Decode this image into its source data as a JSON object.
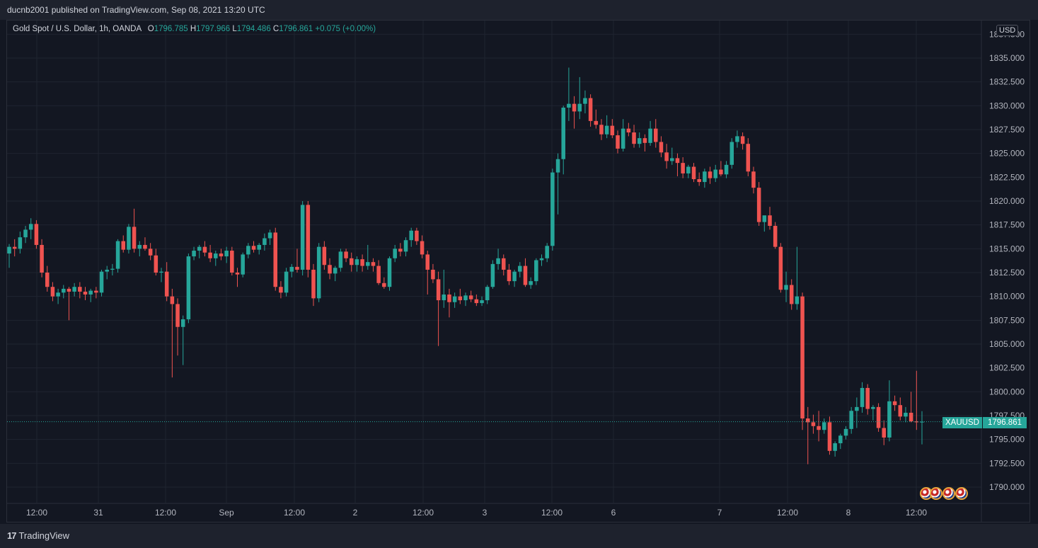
{
  "header": {
    "published": "ducnb2001 published on TradingView.com, Sep 08, 2021 13:20 UTC"
  },
  "legend": {
    "title": "Gold Spot / U.S. Dollar, 1h, OANDA",
    "o_label": "O",
    "o_value": "1796.785",
    "h_label": "H",
    "h_value": "1797.966",
    "l_label": "L",
    "l_value": "1794.486",
    "c_label": "C",
    "c_value": "1796.861",
    "change": "+0.075 (+0.00%)"
  },
  "currency": "USD",
  "symbol": "XAUUSD",
  "last_price": "1796.861",
  "footer": {
    "brand": "TradingView"
  },
  "colors": {
    "up": "#26a69a",
    "down": "#ef5350",
    "background": "#131722",
    "grid": "#1f2430"
  },
  "chart_data": {
    "type": "candlestick",
    "ylim": [
      1789,
      1837.5
    ],
    "y_ticks": [
      "1790.000",
      "1792.500",
      "1795.000",
      "1797.500",
      "1800.000",
      "1802.500",
      "1805.000",
      "1807.500",
      "1810.000",
      "1812.500",
      "1815.000",
      "1817.500",
      "1820.000",
      "1822.500",
      "1825.000",
      "1827.500",
      "1830.000",
      "1832.500",
      "1835.000",
      "1837.500"
    ],
    "x_ticks": [
      "12:00",
      "31",
      "12:00",
      "Sep",
      "12:00",
      "2",
      "12:00",
      "3",
      "12:00",
      "6",
      "7",
      "12:00",
      "8",
      "12:00"
    ],
    "last_close": 1796.861,
    "candles": [
      [
        1814.5,
        1815.5,
        1813.0,
        1815.2
      ],
      [
        1815.2,
        1816.0,
        1814.2,
        1815.0
      ],
      [
        1815.0,
        1816.8,
        1814.5,
        1816.2
      ],
      [
        1816.2,
        1817.4,
        1815.6,
        1817.0
      ],
      [
        1817.0,
        1818.2,
        1816.0,
        1817.6
      ],
      [
        1817.6,
        1818.0,
        1815.0,
        1815.4
      ],
      [
        1815.4,
        1816.0,
        1812.0,
        1812.5
      ],
      [
        1812.5,
        1813.2,
        1810.5,
        1811.0
      ],
      [
        1811.0,
        1811.5,
        1809.5,
        1810.0
      ],
      [
        1810.0,
        1810.8,
        1809.2,
        1810.4
      ],
      [
        1810.4,
        1811.2,
        1809.8,
        1810.8
      ],
      [
        1810.8,
        1811.0,
        1807.5,
        1810.5
      ],
      [
        1810.5,
        1811.4,
        1810.0,
        1811.0
      ],
      [
        1811.0,
        1811.5,
        1809.8,
        1810.5
      ],
      [
        1810.5,
        1811.0,
        1809.6,
        1810.2
      ],
      [
        1810.2,
        1810.8,
        1809.4,
        1810.6
      ],
      [
        1810.6,
        1811.0,
        1809.8,
        1810.4
      ],
      [
        1810.4,
        1812.8,
        1810.0,
        1812.6
      ],
      [
        1812.6,
        1813.2,
        1811.8,
        1812.8
      ],
      [
        1812.8,
        1813.4,
        1812.2,
        1812.9
      ],
      [
        1812.9,
        1816.0,
        1812.5,
        1815.8
      ],
      [
        1815.8,
        1816.4,
        1814.6,
        1814.9
      ],
      [
        1814.9,
        1817.6,
        1814.5,
        1817.3
      ],
      [
        1817.3,
        1819.2,
        1814.6,
        1815.0
      ],
      [
        1815.0,
        1815.8,
        1814.2,
        1815.4
      ],
      [
        1815.4,
        1816.2,
        1814.8,
        1815.0
      ],
      [
        1815.0,
        1815.6,
        1813.8,
        1814.3
      ],
      [
        1814.3,
        1815.0,
        1812.2,
        1812.5
      ],
      [
        1812.5,
        1813.0,
        1811.5,
        1812.6
      ],
      [
        1812.6,
        1813.6,
        1809.5,
        1810.0
      ],
      [
        1810.0,
        1810.8,
        1801.5,
        1809.2
      ],
      [
        1809.2,
        1809.8,
        1803.8,
        1806.8
      ],
      [
        1806.8,
        1808.0,
        1802.8,
        1807.6
      ],
      [
        1807.6,
        1814.5,
        1807.2,
        1814.2
      ],
      [
        1814.2,
        1815.2,
        1813.8,
        1814.8
      ],
      [
        1814.8,
        1815.4,
        1814.0,
        1815.2
      ],
      [
        1815.2,
        1815.8,
        1814.2,
        1814.6
      ],
      [
        1814.6,
        1815.4,
        1813.6,
        1814.0
      ],
      [
        1814.0,
        1814.8,
        1813.2,
        1814.5
      ],
      [
        1814.5,
        1815.0,
        1813.8,
        1814.2
      ],
      [
        1814.2,
        1815.2,
        1813.5,
        1814.8
      ],
      [
        1814.8,
        1815.2,
        1812.2,
        1812.5
      ],
      [
        1812.5,
        1813.0,
        1811.0,
        1812.3
      ],
      [
        1812.3,
        1814.6,
        1812.0,
        1814.4
      ],
      [
        1814.4,
        1815.6,
        1814.0,
        1815.3
      ],
      [
        1815.3,
        1815.8,
        1814.6,
        1814.9
      ],
      [
        1814.9,
        1815.6,
        1814.4,
        1815.4
      ],
      [
        1815.4,
        1816.6,
        1814.8,
        1816.1
      ],
      [
        1816.1,
        1817.0,
        1815.4,
        1816.7
      ],
      [
        1816.7,
        1817.2,
        1810.6,
        1811.0
      ],
      [
        1811.0,
        1811.6,
        1809.8,
        1810.4
      ],
      [
        1810.4,
        1813.0,
        1810.0,
        1812.6
      ],
      [
        1812.6,
        1813.4,
        1812.0,
        1813.1
      ],
      [
        1813.1,
        1815.0,
        1812.5,
        1812.8
      ],
      [
        1812.8,
        1820.0,
        1812.2,
        1819.6
      ],
      [
        1819.6,
        1820.0,
        1812.0,
        1812.8
      ],
      [
        1812.8,
        1813.4,
        1809.0,
        1809.8
      ],
      [
        1809.8,
        1815.6,
        1809.4,
        1815.2
      ],
      [
        1815.2,
        1815.8,
        1812.8,
        1813.3
      ],
      [
        1813.3,
        1814.0,
        1811.8,
        1812.4
      ],
      [
        1812.4,
        1813.2,
        1811.6,
        1813.0
      ],
      [
        1813.0,
        1815.0,
        1812.6,
        1814.7
      ],
      [
        1814.7,
        1815.0,
        1813.6,
        1814.0
      ],
      [
        1814.0,
        1814.6,
        1812.6,
        1813.3
      ],
      [
        1813.3,
        1814.2,
        1812.6,
        1813.9
      ],
      [
        1813.9,
        1814.4,
        1812.6,
        1813.2
      ],
      [
        1813.2,
        1815.4,
        1812.8,
        1813.6
      ],
      [
        1813.6,
        1814.0,
        1812.6,
        1813.2
      ],
      [
        1813.2,
        1813.8,
        1811.2,
        1811.4
      ],
      [
        1811.4,
        1812.0,
        1810.8,
        1811.0
      ],
      [
        1811.0,
        1814.2,
        1810.6,
        1814.0
      ],
      [
        1814.0,
        1815.4,
        1813.6,
        1815.0
      ],
      [
        1815.0,
        1815.6,
        1814.2,
        1814.7
      ],
      [
        1814.7,
        1816.2,
        1814.2,
        1815.9
      ],
      [
        1815.9,
        1817.2,
        1815.2,
        1816.9
      ],
      [
        1816.9,
        1817.2,
        1815.4,
        1815.8
      ],
      [
        1815.8,
        1816.4,
        1814.0,
        1814.4
      ],
      [
        1814.4,
        1814.8,
        1810.2,
        1812.8
      ],
      [
        1812.8,
        1813.4,
        1811.4,
        1811.8
      ],
      [
        1811.8,
        1812.6,
        1804.8,
        1809.6
      ],
      [
        1809.6,
        1812.8,
        1808.8,
        1810.2
      ],
      [
        1810.2,
        1810.8,
        1807.8,
        1809.4
      ],
      [
        1809.4,
        1810.4,
        1808.8,
        1810.0
      ],
      [
        1810.0,
        1810.8,
        1809.2,
        1809.6
      ],
      [
        1809.6,
        1810.4,
        1809.0,
        1810.1
      ],
      [
        1810.1,
        1810.6,
        1809.4,
        1809.7
      ],
      [
        1809.7,
        1810.2,
        1809.0,
        1809.3
      ],
      [
        1809.3,
        1810.0,
        1809.0,
        1809.6
      ],
      [
        1809.6,
        1811.2,
        1809.2,
        1811.0
      ],
      [
        1811.0,
        1813.8,
        1810.8,
        1813.4
      ],
      [
        1813.4,
        1815.0,
        1812.8,
        1814.0
      ],
      [
        1814.0,
        1814.4,
        1812.2,
        1812.8
      ],
      [
        1812.8,
        1813.4,
        1811.2,
        1811.6
      ],
      [
        1811.6,
        1812.8,
        1811.0,
        1812.6
      ],
      [
        1812.6,
        1813.6,
        1812.0,
        1813.2
      ],
      [
        1813.2,
        1814.0,
        1811.0,
        1811.2
      ],
      [
        1811.2,
        1812.0,
        1810.8,
        1811.6
      ],
      [
        1811.6,
        1814.0,
        1811.2,
        1813.8
      ],
      [
        1813.8,
        1814.4,
        1813.2,
        1814.0
      ],
      [
        1814.0,
        1815.6,
        1813.6,
        1815.3
      ],
      [
        1815.3,
        1823.4,
        1814.8,
        1823.0
      ],
      [
        1823.0,
        1825.0,
        1818.6,
        1824.4
      ],
      [
        1824.4,
        1830.0,
        1822.8,
        1829.8
      ],
      [
        1829.8,
        1834.0,
        1828.4,
        1830.2
      ],
      [
        1830.2,
        1831.0,
        1827.6,
        1829.4
      ],
      [
        1829.4,
        1833.0,
        1828.6,
        1830.2
      ],
      [
        1830.2,
        1831.6,
        1829.2,
        1830.8
      ],
      [
        1830.8,
        1831.2,
        1827.8,
        1828.4
      ],
      [
        1828.4,
        1829.6,
        1827.6,
        1828.0
      ],
      [
        1828.0,
        1828.6,
        1826.4,
        1827.0
      ],
      [
        1827.0,
        1829.0,
        1826.6,
        1827.9
      ],
      [
        1827.9,
        1828.6,
        1826.6,
        1826.9
      ],
      [
        1826.9,
        1827.4,
        1825.0,
        1825.5
      ],
      [
        1825.5,
        1828.6,
        1825.2,
        1827.6
      ],
      [
        1827.6,
        1828.2,
        1826.8,
        1827.2
      ],
      [
        1827.2,
        1828.0,
        1825.6,
        1826.0
      ],
      [
        1826.0,
        1827.2,
        1825.6,
        1826.6
      ],
      [
        1826.6,
        1827.0,
        1825.2,
        1826.1
      ],
      [
        1826.1,
        1828.4,
        1825.8,
        1827.6
      ],
      [
        1827.6,
        1828.6,
        1825.6,
        1826.2
      ],
      [
        1826.2,
        1826.8,
        1824.6,
        1825.1
      ],
      [
        1825.1,
        1826.0,
        1823.4,
        1824.2
      ],
      [
        1824.2,
        1825.6,
        1823.8,
        1824.5
      ],
      [
        1824.5,
        1825.0,
        1822.6,
        1824.0
      ],
      [
        1824.0,
        1824.6,
        1822.4,
        1822.9
      ],
      [
        1822.9,
        1823.8,
        1822.4,
        1823.6
      ],
      [
        1823.6,
        1824.0,
        1822.0,
        1822.3
      ],
      [
        1822.3,
        1823.0,
        1821.6,
        1822.0
      ],
      [
        1822.0,
        1823.4,
        1821.4,
        1823.1
      ],
      [
        1823.1,
        1823.6,
        1821.8,
        1822.4
      ],
      [
        1822.4,
        1823.8,
        1822.0,
        1823.3
      ],
      [
        1823.3,
        1824.2,
        1822.6,
        1822.8
      ],
      [
        1822.8,
        1824.2,
        1822.4,
        1823.8
      ],
      [
        1823.8,
        1826.6,
        1823.4,
        1826.2
      ],
      [
        1826.2,
        1827.4,
        1825.6,
        1826.8
      ],
      [
        1826.8,
        1827.2,
        1825.4,
        1826.0
      ],
      [
        1826.0,
        1826.6,
        1822.6,
        1823.1
      ],
      [
        1823.1,
        1823.6,
        1820.8,
        1821.4
      ],
      [
        1821.4,
        1822.0,
        1817.4,
        1817.8
      ],
      [
        1817.8,
        1818.4,
        1816.8,
        1818.5
      ],
      [
        1818.5,
        1819.4,
        1817.0,
        1817.4
      ],
      [
        1817.4,
        1817.8,
        1815.0,
        1815.2
      ],
      [
        1815.2,
        1815.6,
        1810.4,
        1810.7
      ],
      [
        1810.7,
        1812.6,
        1809.4,
        1811.2
      ],
      [
        1811.2,
        1811.8,
        1808.6,
        1809.2
      ],
      [
        1809.2,
        1815.2,
        1808.6,
        1810.0
      ],
      [
        1810.0,
        1810.4,
        1796.0,
        1797.2
      ],
      [
        1797.2,
        1798.4,
        1792.4,
        1796.8
      ],
      [
        1796.8,
        1797.6,
        1795.6,
        1796.4
      ],
      [
        1796.4,
        1798.0,
        1794.8,
        1796.0
      ],
      [
        1796.0,
        1797.2,
        1795.6,
        1796.8
      ],
      [
        1796.8,
        1797.4,
        1793.4,
        1793.8
      ],
      [
        1793.8,
        1794.8,
        1793.2,
        1794.6
      ],
      [
        1794.6,
        1795.6,
        1794.0,
        1795.4
      ],
      [
        1795.4,
        1796.4,
        1795.0,
        1796.1
      ],
      [
        1796.1,
        1798.4,
        1795.6,
        1798.0
      ],
      [
        1798.0,
        1799.4,
        1796.2,
        1798.4
      ],
      [
        1798.4,
        1801.0,
        1797.8,
        1800.4
      ],
      [
        1800.4,
        1800.8,
        1797.6,
        1798.2
      ],
      [
        1798.2,
        1798.6,
        1797.0,
        1798.4
      ],
      [
        1798.4,
        1798.8,
        1795.8,
        1796.2
      ],
      [
        1796.2,
        1797.0,
        1794.4,
        1795.2
      ],
      [
        1795.2,
        1801.2,
        1794.8,
        1799.0
      ],
      [
        1799.0,
        1799.6,
        1798.0,
        1798.6
      ],
      [
        1798.6,
        1799.4,
        1797.0,
        1797.4
      ],
      [
        1797.4,
        1798.4,
        1796.8,
        1797.8
      ],
      [
        1797.8,
        1800.0,
        1796.8,
        1796.9
      ],
      [
        1796.9,
        1802.2,
        1796.0,
        1796.8
      ],
      [
        1796.785,
        1797.966,
        1794.486,
        1796.861
      ]
    ]
  }
}
